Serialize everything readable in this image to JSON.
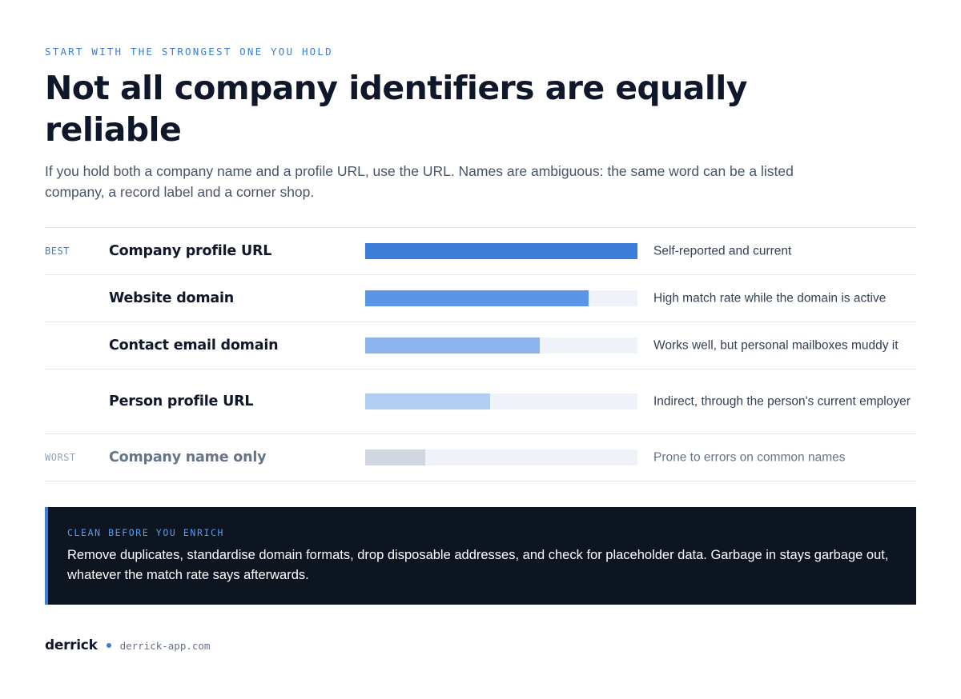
{
  "eyebrow": "START WITH THE STRONGEST ONE YOU HOLD",
  "title": "Not all company identifiers are equally reliable",
  "subtitle": "If you hold both a company name and a profile URL, use the URL. Names are ambiguous: the same word can be a listed company, a record label and a corner shop.",
  "rows": [
    {
      "rank": "BEST",
      "name": "Company profile URL",
      "reliability": 1.0,
      "bar_color": "#3b7dd8",
      "note": "Self-reported and current"
    },
    {
      "rank": "",
      "name": "Website domain",
      "reliability": 0.82,
      "bar_color": "#5b95e5",
      "note": "High match rate while the domain is active"
    },
    {
      "rank": "",
      "name": "Contact email domain",
      "reliability": 0.64,
      "bar_color": "#8db4ec",
      "note": "Works well, but personal mailboxes muddy it"
    },
    {
      "rank": "",
      "name": "Person profile URL",
      "reliability": 0.46,
      "bar_color": "#b2cdf2",
      "note": "Indirect, through the person's current employer"
    },
    {
      "rank": "WORST",
      "name": "Company name only",
      "reliability": 0.22,
      "bar_color": "#cfd6e1",
      "note": "Prone to errors on common names"
    }
  ],
  "callout": {
    "label": "CLEAN BEFORE YOU ENRICH",
    "text": "Remove duplicates, standardise domain formats, drop disposable addresses, and check for placeholder data. Garbage in stays garbage out, whatever the match rate says afterwards."
  },
  "footer": {
    "brand": "derrick",
    "domain": "derrick-app.com"
  },
  "colors": {
    "accent": "#3b7dd8",
    "callout_bg": "#0d1520",
    "track": "#eff3f9"
  }
}
